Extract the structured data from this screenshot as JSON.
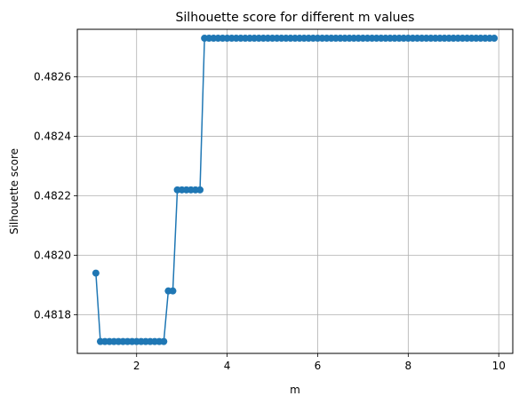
{
  "chart_data": {
    "type": "line",
    "title": "Silhouette score for different m values",
    "xlabel": "m",
    "ylabel": "Silhouette score",
    "xlim": [
      0.69,
      10.31
    ],
    "ylim": [
      0.48167,
      0.48276
    ],
    "x_ticks": [
      2,
      4,
      6,
      8,
      10
    ],
    "y_ticks": [
      0.4818,
      0.482,
      0.4822,
      0.4824,
      0.4826
    ],
    "x_tick_labels": [
      "2",
      "4",
      "6",
      "8",
      "10"
    ],
    "y_tick_labels": [
      "0.4818",
      "0.4820",
      "0.4822",
      "0.4824",
      "0.4826"
    ],
    "grid": true,
    "marker": "circle",
    "line_color": "#1f77b4",
    "series": [
      {
        "x": [
          1.1,
          1.2,
          1.3,
          1.4,
          1.5,
          1.6,
          1.7,
          1.8,
          1.9,
          2.0,
          2.1,
          2.2,
          2.3,
          2.4,
          2.5,
          2.6,
          2.7,
          2.8,
          2.9,
          3.0,
          3.1,
          3.2,
          3.3,
          3.4,
          3.5,
          3.6,
          3.7,
          3.8,
          3.9,
          4.0,
          4.1,
          4.2,
          4.3,
          4.4,
          4.5,
          4.6,
          4.7,
          4.8,
          4.9,
          5.0,
          5.1,
          5.2,
          5.3,
          5.4,
          5.5,
          5.6,
          5.7,
          5.8,
          5.9,
          6.0,
          6.1,
          6.2,
          6.3,
          6.4,
          6.5,
          6.6,
          6.7,
          6.8,
          6.9,
          7.0,
          7.1,
          7.2,
          7.3,
          7.4,
          7.5,
          7.6,
          7.7,
          7.8,
          7.9,
          8.0,
          8.1,
          8.2,
          8.3,
          8.4,
          8.5,
          8.6,
          8.7,
          8.8,
          8.9,
          9.0,
          9.1,
          9.2,
          9.3,
          9.4,
          9.5,
          9.6,
          9.7,
          9.8,
          9.9
        ],
        "y": [
          0.48194,
          0.48171,
          0.48171,
          0.48171,
          0.48171,
          0.48171,
          0.48171,
          0.48171,
          0.48171,
          0.48171,
          0.48171,
          0.48171,
          0.48171,
          0.48171,
          0.48171,
          0.48171,
          0.48188,
          0.48188,
          0.48222,
          0.48222,
          0.48222,
          0.48222,
          0.48222,
          0.48222,
          0.48273,
          0.48273,
          0.48273,
          0.48273,
          0.48273,
          0.48273,
          0.48273,
          0.48273,
          0.48273,
          0.48273,
          0.48273,
          0.48273,
          0.48273,
          0.48273,
          0.48273,
          0.48273,
          0.48273,
          0.48273,
          0.48273,
          0.48273,
          0.48273,
          0.48273,
          0.48273,
          0.48273,
          0.48273,
          0.48273,
          0.48273,
          0.48273,
          0.48273,
          0.48273,
          0.48273,
          0.48273,
          0.48273,
          0.48273,
          0.48273,
          0.48273,
          0.48273,
          0.48273,
          0.48273,
          0.48273,
          0.48273,
          0.48273,
          0.48273,
          0.48273,
          0.48273,
          0.48273,
          0.48273,
          0.48273,
          0.48273,
          0.48273,
          0.48273,
          0.48273,
          0.48273,
          0.48273,
          0.48273,
          0.48273,
          0.48273,
          0.48273,
          0.48273,
          0.48273,
          0.48273,
          0.48273,
          0.48273,
          0.48273,
          0.48273
        ]
      }
    ]
  }
}
